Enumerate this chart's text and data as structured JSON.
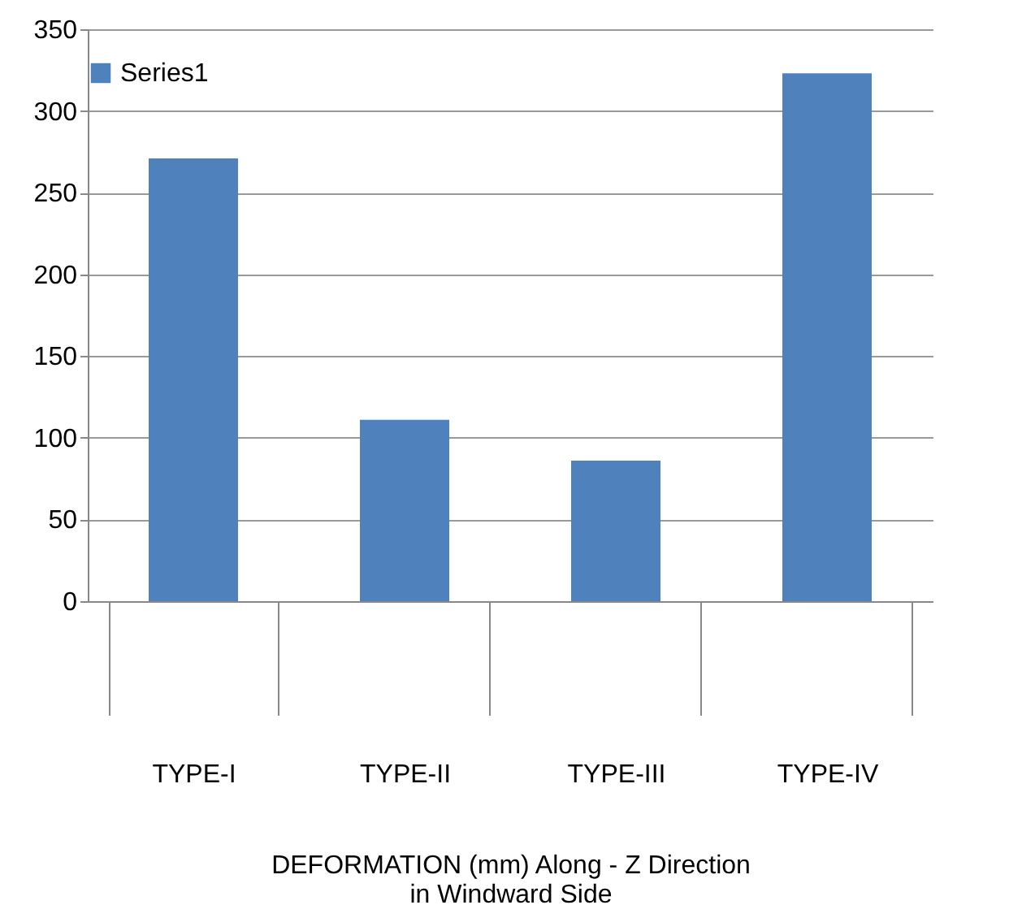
{
  "chart_data": {
    "type": "bar",
    "xlabel": "DEFORMATION (mm) Along - Z Direction in Windward Side",
    "categories": [
      "TYPE-I",
      "TYPE-II",
      "TYPE-III",
      "TYPE-IV"
    ],
    "series": [
      {
        "name": "Series1",
        "color": "#4f81bd",
        "values": [
          271,
          111,
          86,
          323
        ]
      }
    ],
    "ylim": [
      0,
      350
    ],
    "yticks": [
      0,
      50,
      100,
      150,
      200,
      250,
      300,
      350
    ],
    "grid": "y",
    "legend": "top"
  }
}
